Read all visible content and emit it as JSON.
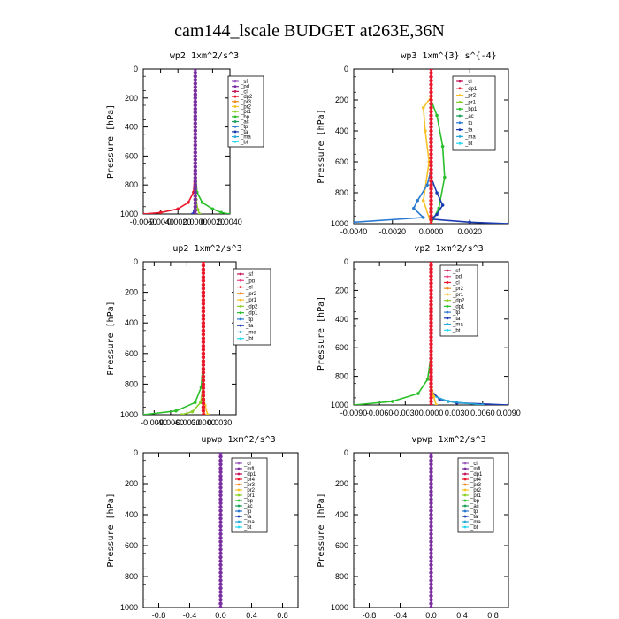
{
  "figure_title": "cam144_lscale  BUDGET at263E,36N",
  "chart_data": [
    {
      "type": "line",
      "title": "wp2  1xm^2/s^3",
      "ylabel": "Pressure [hPa]",
      "xlim": [
        -0.006,
        0.004
      ],
      "ylim": [
        1000,
        0
      ],
      "xticks": [
        "-0.0060",
        "-0.0040",
        "-0.0020",
        "0.0000",
        "0.0020",
        "0.0040"
      ],
      "xtick_values": [
        -0.006,
        -0.004,
        -0.002,
        0,
        0.002,
        0.004
      ],
      "yticks": [
        "0",
        "200",
        "400",
        "600",
        "800",
        "1000"
      ],
      "ytick_values": [
        0,
        200,
        400,
        600,
        800,
        1000
      ],
      "legend": [
        {
          "name": "_sf",
          "color": "#9b5fc0"
        },
        {
          "name": "_pd",
          "color": "#7a2fa0"
        },
        {
          "name": "_cl",
          "color": "#c0185a"
        },
        {
          "name": "_dp2",
          "color": "#e8192c"
        },
        {
          "name": "_pr3",
          "color": "#f08a1c"
        },
        {
          "name": "_pr2",
          "color": "#f7c227"
        },
        {
          "name": "_pr1",
          "color": "#8ccf2a"
        },
        {
          "name": "_bp",
          "color": "#2bbf2b"
        },
        {
          "name": "_ac",
          "color": "#1aa05a"
        },
        {
          "name": "_tp",
          "color": "#2a7ad0"
        },
        {
          "name": "_ta",
          "color": "#1a3ab0"
        },
        {
          "name": "_ma",
          "color": "#2aa8d8"
        },
        {
          "name": "_bt",
          "color": "#29d8f0"
        }
      ],
      "series": [
        {
          "name": "_dp2",
          "color": "#e8192c",
          "points": [
            [
              0,
              0
            ],
            [
              0,
              700
            ],
            [
              -0.0002,
              850
            ],
            [
              -0.0008,
              920
            ],
            [
              -0.002,
              965
            ],
            [
              -0.004,
              990
            ],
            [
              -0.006,
              1000
            ]
          ]
        },
        {
          "name": "_bp",
          "color": "#2bbf2b",
          "points": [
            [
              0,
              0
            ],
            [
              0,
              700
            ],
            [
              0.0002,
              850
            ],
            [
              0.0008,
              920
            ],
            [
              0.002,
              965
            ],
            [
              0.003,
              990
            ],
            [
              0.004,
              1000
            ]
          ]
        },
        {
          "name": "_pr1",
          "color": "#8ccf2a",
          "points": [
            [
              0,
              0
            ],
            [
              0,
              800
            ],
            [
              0.0001,
              900
            ],
            [
              0.0003,
              970
            ],
            [
              0.0005,
              1000
            ]
          ]
        },
        {
          "name": "_ta",
          "color": "#1a3ab0",
          "points": [
            [
              0,
              0
            ],
            [
              0,
              900
            ],
            [
              -0.0001,
              980
            ],
            [
              -0.0003,
              1000
            ]
          ]
        },
        {
          "name": "_pd",
          "color": "#7a2fa0",
          "points": [
            [
              0,
              0
            ],
            [
              0,
              1000
            ]
          ]
        }
      ]
    },
    {
      "type": "line",
      "title": "wp3  1xm^{3} s^{-4}",
      "ylabel": "Pressure [hPa]",
      "xlim": [
        -0.004,
        0.004
      ],
      "ylim": [
        1000,
        0
      ],
      "xticks": [
        "-0.0040",
        "-0.0020",
        "0.0000",
        "0.0020"
      ],
      "xtick_values": [
        -0.004,
        -0.002,
        0,
        0.002
      ],
      "yticks": [
        "0",
        "200",
        "400",
        "600",
        "800",
        "1000"
      ],
      "ytick_values": [
        0,
        200,
        400,
        600,
        800,
        1000
      ],
      "legend": [
        {
          "name": "_cl",
          "color": "#c0185a"
        },
        {
          "name": "_dp1",
          "color": "#e8192c"
        },
        {
          "name": "_pr2",
          "color": "#f7c227"
        },
        {
          "name": "_pr1",
          "color": "#8ccf2a"
        },
        {
          "name": "_bp1",
          "color": "#2bbf2b"
        },
        {
          "name": "_ac",
          "color": "#1aa05a"
        },
        {
          "name": "_tp",
          "color": "#2a7ad0"
        },
        {
          "name": "_ta",
          "color": "#1a3ab0"
        },
        {
          "name": "_ma",
          "color": "#2aa8d8"
        },
        {
          "name": "_bt",
          "color": "#29d8f0"
        }
      ],
      "series": [
        {
          "name": "_pr2",
          "color": "#f7c227",
          "points": [
            [
              0,
              0
            ],
            [
              0,
              180
            ],
            [
              -0.0004,
              250
            ],
            [
              -0.0003,
              400
            ],
            [
              -0.0001,
              600
            ],
            [
              -0.0004,
              850
            ],
            [
              0,
              1000
            ]
          ]
        },
        {
          "name": "_bp1",
          "color": "#2bbf2b",
          "points": [
            [
              0,
              0
            ],
            [
              0,
              200
            ],
            [
              0.0003,
              300
            ],
            [
              0.0006,
              500
            ],
            [
              0.0007,
              700
            ],
            [
              0.0004,
              900
            ],
            [
              0,
              1000
            ]
          ]
        },
        {
          "name": "_tp",
          "color": "#2a7ad0",
          "points": [
            [
              0,
              0
            ],
            [
              0,
              650
            ],
            [
              -0.0002,
              750
            ],
            [
              -0.0007,
              850
            ],
            [
              -0.0009,
              900
            ],
            [
              -0.0004,
              960
            ],
            [
              -0.004,
              990
            ]
          ]
        },
        {
          "name": "_ta",
          "color": "#1a3ab0",
          "points": [
            [
              0,
              0
            ],
            [
              0,
              700
            ],
            [
              0.0003,
              800
            ],
            [
              0.0006,
              880
            ],
            [
              0.0003,
              940
            ],
            [
              0,
              970
            ],
            [
              0.002,
              990
            ],
            [
              0.004,
              1000
            ]
          ]
        },
        {
          "name": "_dp1",
          "color": "#e8192c",
          "points": [
            [
              0,
              0
            ],
            [
              0,
              1000
            ]
          ]
        }
      ]
    },
    {
      "type": "line",
      "title": "up2  1xm^2/s^3",
      "ylabel": "Pressure [hPa]",
      "xlim": [
        -0.011,
        0.006
      ],
      "ylim": [
        1000,
        0
      ],
      "xticks": [
        "-0.0090",
        "-0.0060",
        "-0.0030",
        "0.0000",
        "0.0030"
      ],
      "xtick_values": [
        -0.009,
        -0.006,
        -0.003,
        0,
        0.003
      ],
      "yticks": [
        "0",
        "200",
        "400",
        "600",
        "800",
        "1000"
      ],
      "ytick_values": [
        0,
        200,
        400,
        600,
        800,
        1000
      ],
      "legend": [
        {
          "name": "_sf",
          "color": "#c0185a"
        },
        {
          "name": "_pd",
          "color": "#e84a8a"
        },
        {
          "name": "_cl",
          "color": "#e8192c"
        },
        {
          "name": "_pr2",
          "color": "#f08a1c"
        },
        {
          "name": "_pr1",
          "color": "#f7c227"
        },
        {
          "name": "_dp2",
          "color": "#8ccf2a"
        },
        {
          "name": "_dp1",
          "color": "#2bbf2b"
        },
        {
          "name": "_tp",
          "color": "#2a7ad0"
        },
        {
          "name": "_ta",
          "color": "#1a3ab0"
        },
        {
          "name": "_ma",
          "color": "#2aa8d8"
        },
        {
          "name": "_bt",
          "color": "#29d8f0"
        }
      ],
      "series": [
        {
          "name": "_dp1",
          "color": "#2bbf2b",
          "points": [
            [
              0,
              0
            ],
            [
              0,
              650
            ],
            [
              -0.0004,
              820
            ],
            [
              -0.0015,
              920
            ],
            [
              -0.005,
              975
            ],
            [
              -0.011,
              1000
            ]
          ]
        },
        {
          "name": "_dp2",
          "color": "#8ccf2a",
          "points": [
            [
              0,
              0
            ],
            [
              0,
              800
            ],
            [
              -0.0005,
              920
            ],
            [
              -0.002,
              980
            ],
            [
              -0.004,
              1000
            ]
          ]
        },
        {
          "name": "_pr1",
          "color": "#f7c227",
          "points": [
            [
              0,
              0
            ],
            [
              0,
              850
            ],
            [
              0.0003,
              940
            ],
            [
              0.0008,
              1000
            ]
          ]
        },
        {
          "name": "_pr2",
          "color": "#f08a1c",
          "points": [
            [
              0,
              0
            ],
            [
              0,
              900
            ],
            [
              0.0002,
              1000
            ]
          ]
        },
        {
          "name": "_cl",
          "color": "#e8192c",
          "points": [
            [
              0,
              0
            ],
            [
              0,
              1000
            ]
          ]
        }
      ]
    },
    {
      "type": "line",
      "title": "vp2  1xm^2/s^3",
      "ylabel": "Pressure [hPa]",
      "xlim": [
        -0.009,
        0.009
      ],
      "ylim": [
        1000,
        0
      ],
      "xticks": [
        "-0.0090",
        "-0.0060",
        "-0.0030",
        "0.0000",
        "0.0030",
        "0.0060",
        "0.0090"
      ],
      "xtick_values": [
        -0.009,
        -0.006,
        -0.003,
        0,
        0.003,
        0.006,
        0.009
      ],
      "yticks": [
        "0",
        "200",
        "400",
        "600",
        "800",
        "1000"
      ],
      "ytick_values": [
        0,
        200,
        400,
        600,
        800,
        1000
      ],
      "legend": [
        {
          "name": "_sf",
          "color": "#c0185a"
        },
        {
          "name": "_pd",
          "color": "#e84a8a"
        },
        {
          "name": "_cl",
          "color": "#e8192c"
        },
        {
          "name": "_pr2",
          "color": "#f08a1c"
        },
        {
          "name": "_pr1",
          "color": "#f7c227"
        },
        {
          "name": "_dp2",
          "color": "#8ccf2a"
        },
        {
          "name": "_dp1",
          "color": "#2bbf2b"
        },
        {
          "name": "_tp",
          "color": "#2a7ad0"
        },
        {
          "name": "_ta",
          "color": "#1a3ab0"
        },
        {
          "name": "_ma",
          "color": "#2aa8d8"
        },
        {
          "name": "_bt",
          "color": "#29d8f0"
        }
      ],
      "series": [
        {
          "name": "_dp1",
          "color": "#2bbf2b",
          "points": [
            [
              0,
              0
            ],
            [
              0,
              650
            ],
            [
              -0.0004,
              820
            ],
            [
              -0.0015,
              920
            ],
            [
              -0.0045,
              975
            ],
            [
              -0.009,
              1000
            ]
          ]
        },
        {
          "name": "_ta",
          "color": "#1a3ab0",
          "points": [
            [
              0,
              0
            ],
            [
              0,
              900
            ],
            [
              0.001,
              960
            ],
            [
              0.003,
              985
            ],
            [
              0.009,
              1000
            ]
          ]
        },
        {
          "name": "_ma",
          "color": "#2aa8d8",
          "points": [
            [
              0,
              0
            ],
            [
              0,
              930
            ],
            [
              0.002,
              975
            ],
            [
              0.006,
              1000
            ]
          ]
        },
        {
          "name": "_pr1",
          "color": "#f7c227",
          "points": [
            [
              0,
              0
            ],
            [
              0,
              850
            ],
            [
              0.0003,
              940
            ],
            [
              0.0006,
              1000
            ]
          ]
        },
        {
          "name": "_cl",
          "color": "#e8192c",
          "points": [
            [
              0,
              0
            ],
            [
              0,
              1000
            ]
          ]
        }
      ]
    },
    {
      "type": "line",
      "title": "upwp  1xm^2/s^3",
      "ylabel": "Pressure [hPa]",
      "xlim": [
        -1.0,
        1.0
      ],
      "ylim": [
        1000,
        0
      ],
      "xticks": [
        "-0.8",
        "-0.4",
        "0.0",
        "0.4",
        "0.8"
      ],
      "xtick_values": [
        -0.8,
        -0.4,
        0,
        0.4,
        0.8
      ],
      "yticks": [
        "0",
        "200",
        "400",
        "600",
        "800",
        "1000"
      ],
      "ytick_values": [
        0,
        200,
        400,
        600,
        800,
        1000
      ],
      "legend": [
        {
          "name": "_cl",
          "color": "#9b5fc0"
        },
        {
          "name": "_mfl",
          "color": "#7a2fa0"
        },
        {
          "name": "_dp1",
          "color": "#c0185a"
        },
        {
          "name": "_pr4",
          "color": "#e8192c"
        },
        {
          "name": "_pr3",
          "color": "#f08a1c"
        },
        {
          "name": "_pr2",
          "color": "#f7c227"
        },
        {
          "name": "_pr1",
          "color": "#8ccf2a"
        },
        {
          "name": "_bp",
          "color": "#2bbf2b"
        },
        {
          "name": "_ac",
          "color": "#1aa05a"
        },
        {
          "name": "_tp",
          "color": "#2a7ad0"
        },
        {
          "name": "_ta",
          "color": "#1a3ab0"
        },
        {
          "name": "_ma",
          "color": "#2aa8d8"
        },
        {
          "name": "_bt",
          "color": "#29d8f0"
        }
      ],
      "series": [
        {
          "name": "_cl",
          "color": "#7a2fa0",
          "points": [
            [
              0,
              0
            ],
            [
              0,
              1000
            ]
          ]
        }
      ]
    },
    {
      "type": "line",
      "title": "vpwp  1xm^2/s^3",
      "ylabel": "Pressure [hPa]",
      "xlim": [
        -1.0,
        1.0
      ],
      "ylim": [
        1000,
        0
      ],
      "xticks": [
        "-0.8",
        "-0.4",
        "0.0",
        "0.4",
        "0.8"
      ],
      "xtick_values": [
        -0.8,
        -0.4,
        0,
        0.4,
        0.8
      ],
      "yticks": [
        "0",
        "200",
        "400",
        "600",
        "800",
        "1000"
      ],
      "ytick_values": [
        0,
        200,
        400,
        600,
        800,
        1000
      ],
      "legend": [
        {
          "name": "_cl",
          "color": "#9b5fc0"
        },
        {
          "name": "_mfl",
          "color": "#7a2fa0"
        },
        {
          "name": "_dp1",
          "color": "#c0185a"
        },
        {
          "name": "_pr4",
          "color": "#e8192c"
        },
        {
          "name": "_pr3",
          "color": "#f08a1c"
        },
        {
          "name": "_pr2",
          "color": "#f7c227"
        },
        {
          "name": "_pr1",
          "color": "#8ccf2a"
        },
        {
          "name": "_bp",
          "color": "#2bbf2b"
        },
        {
          "name": "_ac",
          "color": "#1aa05a"
        },
        {
          "name": "_tp",
          "color": "#2a7ad0"
        },
        {
          "name": "_ta",
          "color": "#1a3ab0"
        },
        {
          "name": "_ma",
          "color": "#2aa8d8"
        },
        {
          "name": "_bt",
          "color": "#29d8f0"
        }
      ],
      "series": [
        {
          "name": "_cl",
          "color": "#7a2fa0",
          "points": [
            [
              0,
              0
            ],
            [
              0,
              1000
            ]
          ]
        }
      ]
    }
  ]
}
